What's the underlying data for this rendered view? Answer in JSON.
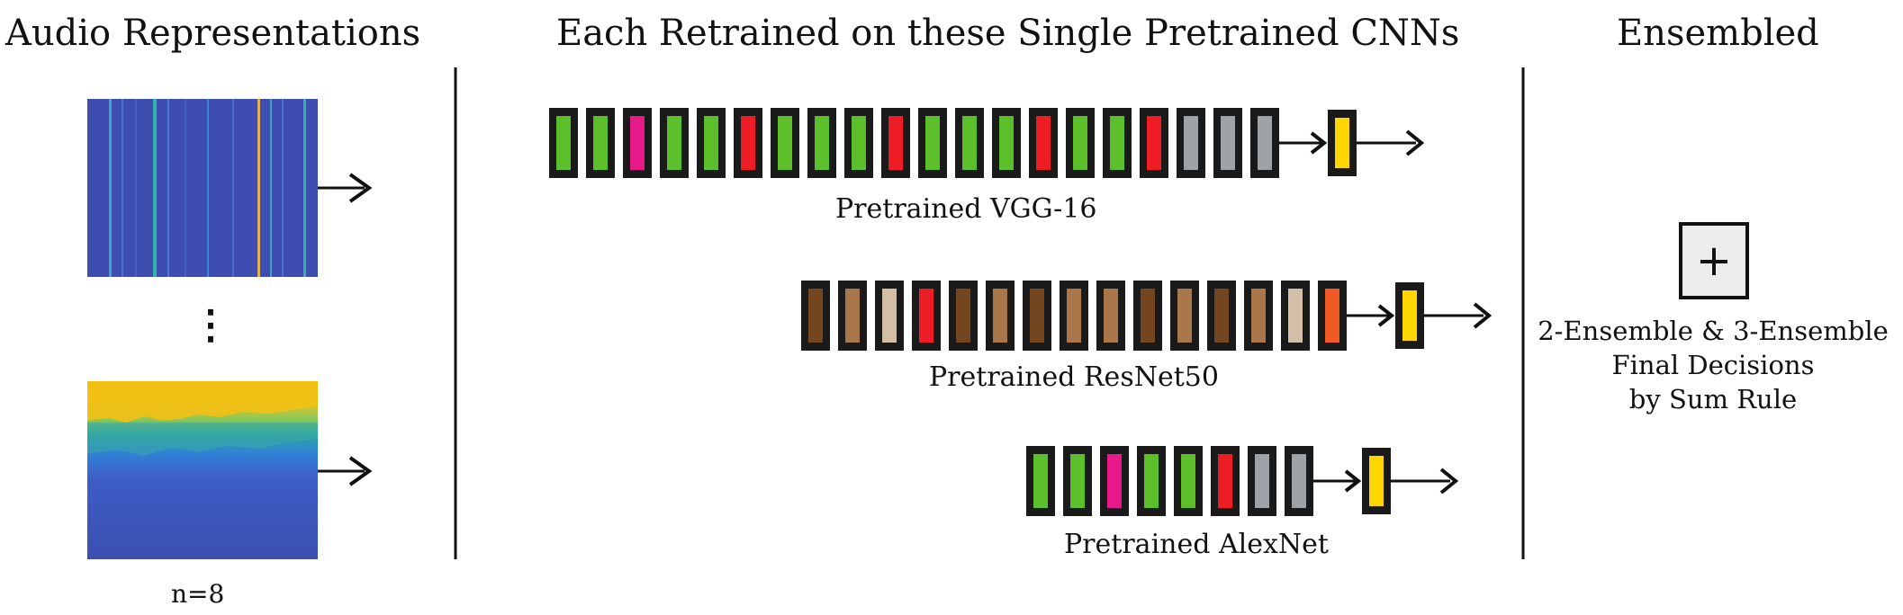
{
  "headings": {
    "left": "Audio Representations",
    "middle": "Each Retrained on these Single Pretrained CNNs",
    "right": "Ensembled"
  },
  "audio": {
    "dots": "⋮",
    "count_label": "n=8"
  },
  "networks": [
    {
      "name": "Pretrained VGG-16",
      "blocks": [
        "#5cbf2a",
        "#5cbf2a",
        "#e8198b",
        "#5cbf2a",
        "#5cbf2a",
        "#ee1c24",
        "#5cbf2a",
        "#5cbf2a",
        "#5cbf2a",
        "#ee1c24",
        "#5cbf2a",
        "#5cbf2a",
        "#5cbf2a",
        "#ee1c24",
        "#5cbf2a",
        "#5cbf2a",
        "#ee1c24",
        "#9ea3a8",
        "#9ea3a8",
        "#9ea3a8"
      ],
      "output": "#ffd700"
    },
    {
      "name": "Pretrained ResNet50",
      "blocks": [
        "#744620",
        "#a9774a",
        "#d3bfa6",
        "#ee1c24",
        "#744620",
        "#a9774a",
        "#744620",
        "#a9774a",
        "#a9774a",
        "#744620",
        "#a9774a",
        "#744620",
        "#a9774a",
        "#d3bfa6",
        "#f15a22"
      ],
      "output": "#ffd700"
    },
    {
      "name": "Pretrained AlexNet",
      "blocks": [
        "#5cbf2a",
        "#5cbf2a",
        "#e8198b",
        "#5cbf2a",
        "#5cbf2a",
        "#ee1c24",
        "#9ea3a8",
        "#9ea3a8"
      ],
      "output": "#ffd700"
    }
  ],
  "ensemble": {
    "symbol": "+",
    "lines": [
      "2-Ensemble & 3-Ensemble",
      "Final Decisions",
      "by Sum Rule"
    ]
  }
}
